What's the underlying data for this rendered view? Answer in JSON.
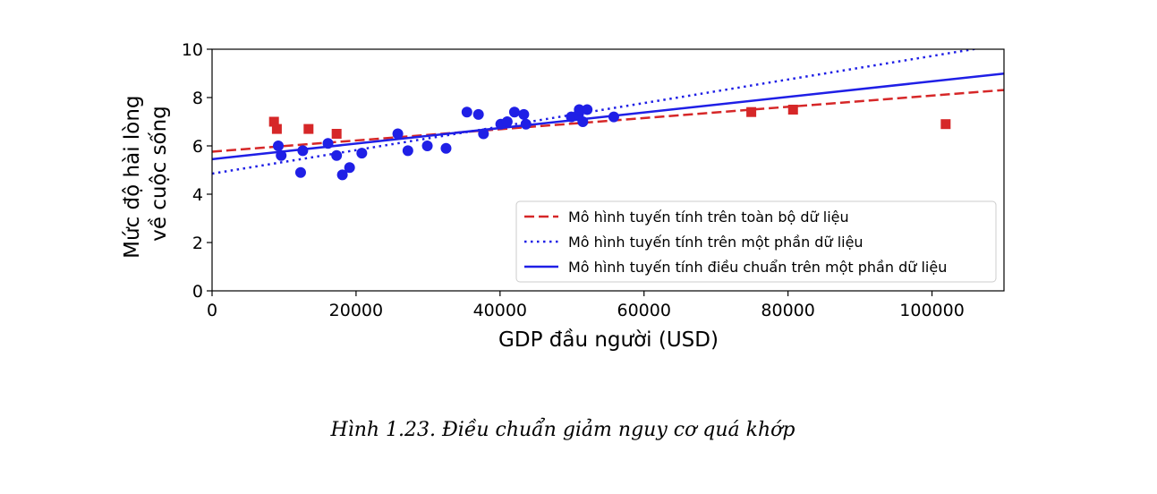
{
  "chart_data": {
    "type": "scatter",
    "xlabel": "GDP đầu người (USD)",
    "ylabel_line1": "Mức độ hài lòng",
    "ylabel_line2": "về cuộc sống",
    "xlim": [
      0,
      110000
    ],
    "ylim": [
      0,
      10
    ],
    "xticks": [
      0,
      20000,
      40000,
      60000,
      80000,
      100000
    ],
    "yticks": [
      0,
      2,
      4,
      6,
      8,
      10
    ],
    "grid": false,
    "legend_position": "lower-right",
    "series": [
      {
        "kind": "scatter",
        "marker": "square",
        "color": "#d62728",
        "points": [
          [
            8600,
            7.0
          ],
          [
            9000,
            6.7
          ],
          [
            13400,
            6.7
          ],
          [
            17300,
            6.5
          ],
          [
            74900,
            7.4
          ],
          [
            80700,
            7.5
          ],
          [
            101900,
            6.9
          ]
        ]
      },
      {
        "kind": "scatter",
        "marker": "circle",
        "color": "#1f1fe6",
        "points": [
          [
            9200,
            6.0
          ],
          [
            9600,
            5.6
          ],
          [
            12300,
            4.9
          ],
          [
            12600,
            5.8
          ],
          [
            16100,
            6.1
          ],
          [
            17300,
            5.6
          ],
          [
            18100,
            4.8
          ],
          [
            19100,
            5.1
          ],
          [
            20800,
            5.7
          ],
          [
            25800,
            6.5
          ],
          [
            27200,
            5.8
          ],
          [
            29900,
            6.0
          ],
          [
            32500,
            5.9
          ],
          [
            35400,
            7.4
          ],
          [
            37000,
            7.3
          ],
          [
            37700,
            6.5
          ],
          [
            40100,
            6.9
          ],
          [
            41000,
            7.0
          ],
          [
            42000,
            7.4
          ],
          [
            43300,
            7.3
          ],
          [
            43600,
            6.9
          ],
          [
            49900,
            7.2
          ],
          [
            50900,
            7.3
          ],
          [
            51000,
            7.5
          ],
          [
            51500,
            7.0
          ],
          [
            52100,
            7.5
          ],
          [
            55800,
            7.2
          ]
        ]
      },
      {
        "kind": "line",
        "style": "dashed",
        "color": "#d62728",
        "name": "Mô hình tuyến tính trên toàn bộ dữ liệu",
        "intercept": 5.76,
        "slope": 2.32e-05
      },
      {
        "kind": "line",
        "style": "dotted",
        "color": "#1f1fe6",
        "name": "Mô hình tuyến tính trên một phần dữ liệu",
        "intercept": 4.85,
        "slope": 4.87e-05
      },
      {
        "kind": "line",
        "style": "solid",
        "color": "#1f1fe6",
        "name": "Mô hình tuyến tính điều chuẩn trên một phần dữ liệu",
        "intercept": 5.45,
        "slope": 3.22e-05
      }
    ]
  },
  "caption": "Hình 1.23. Điều chuẩn giảm nguy cơ quá khớp"
}
